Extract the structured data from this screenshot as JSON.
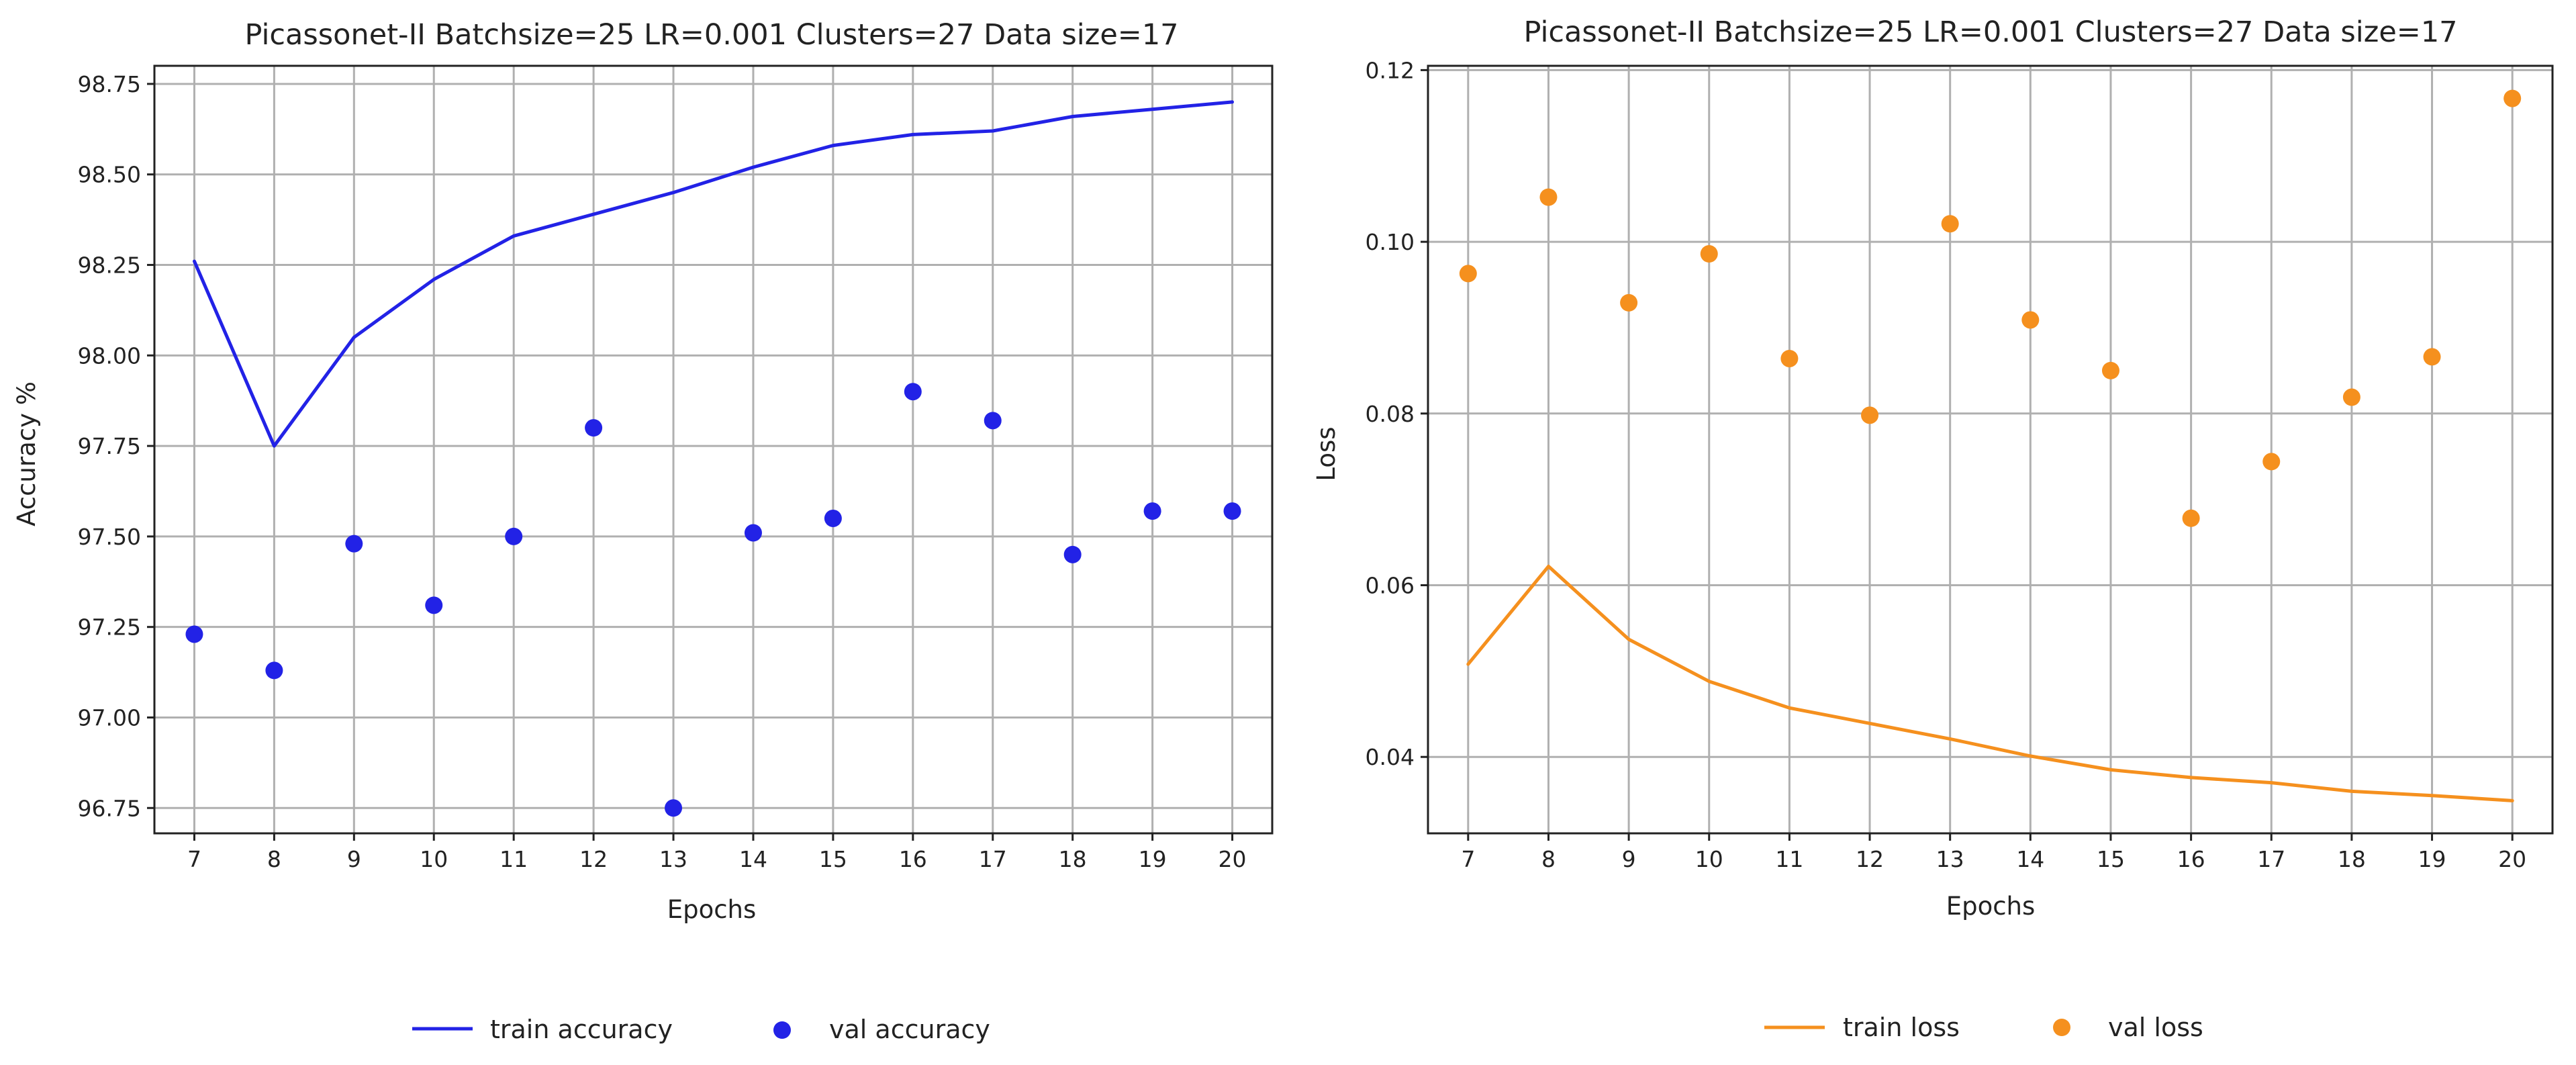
{
  "chart_data": [
    {
      "type": "line+scatter",
      "title": "Picassonet-II Batchsize=25 LR=0.001 Clusters=27 Data size=17",
      "xlabel": "Epochs",
      "ylabel": "Accuracy %",
      "x": [
        7,
        8,
        9,
        10,
        11,
        12,
        13,
        14,
        15,
        16,
        17,
        18,
        19,
        20
      ],
      "xlim": [
        6.5,
        20.5
      ],
      "ylim": [
        96.68,
        98.8
      ],
      "yticks": [
        96.75,
        97.0,
        97.25,
        97.5,
        97.75,
        98.0,
        98.25,
        98.5,
        98.75
      ],
      "ytick_labels": [
        "96.75",
        "97.00",
        "97.25",
        "97.50",
        "97.75",
        "98.00",
        "98.25",
        "98.50",
        "98.75"
      ],
      "grid": true,
      "legend_position": "bottom-center",
      "series": [
        {
          "name": "train accuracy",
          "kind": "line",
          "color": "#2222e6",
          "values": [
            98.26,
            97.75,
            98.05,
            98.21,
            98.33,
            98.39,
            98.45,
            98.52,
            98.58,
            98.61,
            98.62,
            98.66,
            98.68,
            98.7
          ]
        },
        {
          "name": "val accuracy",
          "kind": "scatter",
          "color": "#2222e6",
          "values": [
            97.23,
            97.13,
            97.48,
            97.31,
            97.5,
            97.8,
            96.75,
            97.51,
            97.55,
            97.9,
            97.82,
            97.45,
            97.57,
            97.57
          ]
        }
      ]
    },
    {
      "type": "line+scatter",
      "title": "Picassonet-II Batchsize=25 LR=0.001 Clusters=27 Data size=17",
      "xlabel": "Epochs",
      "ylabel": "Loss",
      "x": [
        7,
        8,
        9,
        10,
        11,
        12,
        13,
        14,
        15,
        16,
        17,
        18,
        19,
        20
      ],
      "xlim": [
        6.5,
        20.5
      ],
      "ylim": [
        0.0311,
        0.1205
      ],
      "yticks": [
        0.04,
        0.06,
        0.08,
        0.1,
        0.12
      ],
      "ytick_labels": [
        "0.04",
        "0.06",
        "0.08",
        "0.10",
        "0.12"
      ],
      "grid": true,
      "legend_position": "bottom-center",
      "series": [
        {
          "name": "train loss",
          "kind": "line",
          "color": "#f5901e",
          "values": [
            0.0508,
            0.0622,
            0.0537,
            0.0488,
            0.0457,
            0.0439,
            0.0421,
            0.0401,
            0.0385,
            0.0376,
            0.037,
            0.036,
            0.0355,
            0.0349
          ]
        },
        {
          "name": "val loss",
          "kind": "scatter",
          "color": "#f5901e",
          "values": [
            0.0963,
            0.1052,
            0.0929,
            0.0986,
            0.0864,
            0.0798,
            0.1021,
            0.0909,
            0.085,
            0.0678,
            0.0744,
            0.0819,
            0.0866,
            0.1167
          ]
        }
      ]
    }
  ]
}
